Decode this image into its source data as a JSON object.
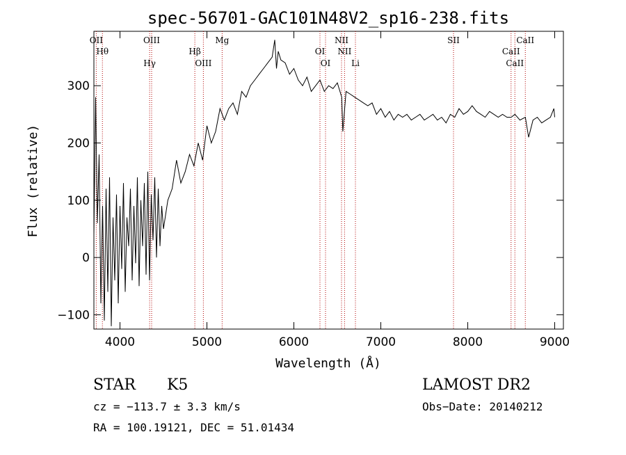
{
  "chart_data": {
    "type": "line",
    "title": "spec-56701-GAC101N48V2_sp16-238.fits",
    "xlabel": "Wavelength (Å)",
    "ylabel": "Flux (relative)",
    "xlim": [
      3700,
      9100
    ],
    "ylim": [
      -125,
      395
    ],
    "x_ticks": [
      4000,
      5000,
      6000,
      7000,
      8000,
      9000
    ],
    "y_ticks": [
      -100,
      0,
      100,
      200,
      300
    ],
    "grid": false,
    "line_color": "#000000",
    "marker_color": "#b00000",
    "series": [
      {
        "x": [
          3700,
          3720,
          3740,
          3760,
          3780,
          3800,
          3820,
          3840,
          3860,
          3880,
          3900,
          3920,
          3940,
          3960,
          3980,
          4000,
          4020,
          4040,
          4060,
          4080,
          4100,
          4120,
          4140,
          4160,
          4180,
          4200,
          4220,
          4240,
          4260,
          4280,
          4300,
          4320,
          4340,
          4360,
          4380,
          4400,
          4420,
          4440,
          4460,
          4480,
          4500,
          4550,
          4600,
          4650,
          4700,
          4750,
          4800,
          4850,
          4900,
          4950,
          5000,
          5050,
          5100,
          5150,
          5200,
          5250,
          5300,
          5350,
          5400,
          5450,
          5500,
          5550,
          5600,
          5650,
          5700,
          5750,
          5780,
          5800,
          5820,
          5850,
          5900,
          5950,
          6000,
          6050,
          6100,
          6150,
          6200,
          6250,
          6300,
          6350,
          6400,
          6450,
          6500,
          6550,
          6563,
          6600,
          6650,
          6700,
          6750,
          6800,
          6850,
          6900,
          6950,
          7000,
          7050,
          7100,
          7150,
          7200,
          7250,
          7300,
          7350,
          7400,
          7450,
          7500,
          7550,
          7600,
          7650,
          7700,
          7750,
          7800,
          7850,
          7900,
          7950,
          8000,
          8050,
          8100,
          8150,
          8200,
          8250,
          8300,
          8350,
          8400,
          8450,
          8500,
          8542,
          8600,
          8662,
          8700,
          8750,
          8800,
          8850,
          8900,
          8950,
          8990,
          9000
        ],
        "y": [
          40,
          280,
          60,
          180,
          -80,
          90,
          -110,
          120,
          -60,
          140,
          -120,
          70,
          -40,
          110,
          -80,
          90,
          -20,
          130,
          -60,
          70,
          20,
          120,
          -40,
          90,
          -10,
          140,
          -50,
          100,
          20,
          130,
          -30,
          150,
          -40,
          110,
          30,
          140,
          0,
          120,
          20,
          90,
          50,
          100,
          120,
          170,
          130,
          150,
          180,
          160,
          200,
          170,
          230,
          200,
          220,
          260,
          240,
          260,
          270,
          250,
          290,
          280,
          300,
          310,
          320,
          330,
          340,
          350,
          380,
          330,
          360,
          345,
          340,
          320,
          330,
          310,
          300,
          315,
          290,
          300,
          310,
          290,
          300,
          295,
          305,
          280,
          220,
          290,
          285,
          280,
          275,
          270,
          265,
          270,
          250,
          260,
          245,
          255,
          240,
          250,
          245,
          250,
          240,
          245,
          250,
          240,
          245,
          250,
          240,
          245,
          235,
          250,
          245,
          260,
          250,
          255,
          265,
          255,
          250,
          245,
          255,
          250,
          245,
          250,
          245,
          245,
          250,
          240,
          245,
          210,
          240,
          245,
          235,
          240,
          245,
          260,
          245
        ]
      }
    ],
    "line_markers": [
      {
        "x": 3727,
        "label": "OII"
      },
      {
        "x": 3798,
        "label": "Hθ"
      },
      {
        "x": 4341,
        "label": "Hγ"
      },
      {
        "x": 4364,
        "label": "OIII"
      },
      {
        "x": 4861,
        "label": "Hβ"
      },
      {
        "x": 4959,
        "label": "OIII"
      },
      {
        "x": 5175,
        "label": "Mg"
      },
      {
        "x": 6300,
        "label": "OI"
      },
      {
        "x": 6364,
        "label": "OI"
      },
      {
        "x": 6548,
        "label": "NII"
      },
      {
        "x": 6583,
        "label": "NII"
      },
      {
        "x": 6708,
        "label": "Li"
      },
      {
        "x": 7836,
        "label": "SII"
      },
      {
        "x": 8498,
        "label": "CaII"
      },
      {
        "x": 8542,
        "label": "CaII"
      },
      {
        "x": 8662,
        "label": "CaII"
      }
    ]
  },
  "info": {
    "class": "STAR",
    "subclass": "K5",
    "survey": "LAMOST DR2",
    "cz": "cz = −113.7 ± 3.3 km/s",
    "obs_date": "Obs−Date: 20140212",
    "radec": "RA = 100.19121, DEC =  51.01434"
  }
}
